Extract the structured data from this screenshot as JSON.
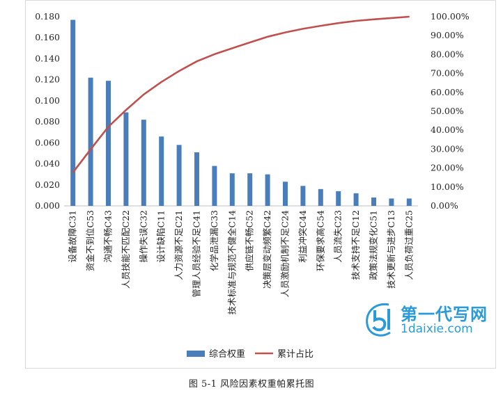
{
  "chart_data": {
    "type": "bar",
    "categories": [
      "设备故障C31",
      "资金不到位C53",
      "沟通不畅C43",
      "人员技能不匹配C22",
      "操作失误C32",
      "设计缺陷C11",
      "人力资源不足C21",
      "管理人员经验不足C41",
      "化学品泄漏C33",
      "技术标准与规范不健全C14",
      "供应链不畅C52",
      "决策层变动频繁C42",
      "人员激励机制不足C24",
      "利益冲突C44",
      "环保要求高C54",
      "人员流失C23",
      "技术支持不足C12",
      "政策法规变化C51",
      "技术更新与进步C13",
      "人员负荷过重C25"
    ],
    "series": [
      {
        "name": "综合权重",
        "type": "bar",
        "axis": "left",
        "color": "#4a7ebb",
        "values": [
          0.177,
          0.122,
          0.119,
          0.089,
          0.082,
          0.066,
          0.058,
          0.051,
          0.038,
          0.031,
          0.031,
          0.03,
          0.023,
          0.019,
          0.016,
          0.014,
          0.012,
          0.008,
          0.007,
          0.007
        ]
      },
      {
        "name": "累计占比",
        "type": "line",
        "axis": "right",
        "color": "#c0504d",
        "values": [
          17.7,
          29.9,
          41.8,
          50.7,
          58.9,
          65.5,
          71.3,
          76.4,
          80.2,
          83.3,
          86.4,
          89.4,
          91.7,
          93.6,
          95.2,
          96.6,
          97.8,
          98.6,
          99.3,
          100.0
        ]
      }
    ],
    "y_left": {
      "min": 0,
      "max": 0.18,
      "ticks": [
        "0.000",
        "0.020",
        "0.040",
        "0.060",
        "0.080",
        "0.100",
        "0.120",
        "0.140",
        "0.160",
        "0.180"
      ]
    },
    "y_right": {
      "min": 0,
      "max": 100,
      "ticks": [
        "0.00%",
        "10.00%",
        "20.00%",
        "30.00%",
        "40.00%",
        "50.00%",
        "60.00%",
        "70.00%",
        "80.00%",
        "90.00%",
        "100.00%"
      ]
    },
    "legend": {
      "position": "bottom",
      "items": [
        "综合权重",
        "累计占比"
      ]
    },
    "grid": false
  },
  "caption": "图 5-1    风险因素权重帕累托图",
  "watermark": {
    "line1": "第一代写网",
    "line2": "1daixie.com",
    "color": "#2a9bd6"
  }
}
